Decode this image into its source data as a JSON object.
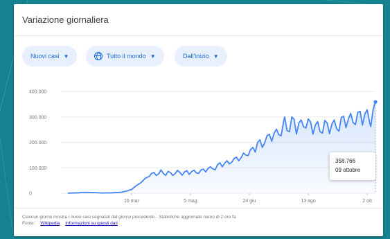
{
  "card": {
    "title": "Variazione giornaliera"
  },
  "filters": [
    {
      "label": "Nuovi casi",
      "icon": "chevron-down-icon"
    },
    {
      "label": "Tutto il mondo",
      "icon": "globe-icon"
    },
    {
      "label": "Dall'inizio",
      "icon": "chevron-down-icon"
    }
  ],
  "tooltip": {
    "value": "358.766",
    "date": "09 ottobre"
  },
  "footer": {
    "description": "Ciascun giorno mostra i nuovi casi segnalati dal giorno precedente · Statistiche aggiornate meno di 2 ore fa",
    "source_label": "Fonte:",
    "links": [
      "Wikipedia",
      "Informazioni su questi dati"
    ]
  },
  "colors": {
    "line": "#4285f4",
    "accent": "#1967d2",
    "background": "#14838f"
  },
  "chart_data": {
    "type": "line",
    "title": "",
    "xlabel": "",
    "ylabel": "",
    "ylim": [
      0,
      400000
    ],
    "yticks": [
      0,
      100000,
      200000,
      300000,
      400000
    ],
    "ytick_labels": [
      "0",
      "100.000",
      "200.000",
      "300.000",
      "400.000"
    ],
    "xtick_labels": [
      "16 mar",
      "5 mag",
      "24 giu",
      "13 ago",
      "2 ott"
    ],
    "xtick_positions": [
      "2020-03-16",
      "2020-05-05",
      "2020-06-24",
      "2020-08-13",
      "2020-10-02"
    ],
    "x_range": [
      "2020-01-22",
      "2020-10-09"
    ],
    "grid": true,
    "series": [
      {
        "points": [
          [
            "2020-01-22",
            600
          ],
          [
            "2020-01-31",
            2000
          ],
          [
            "2020-02-05",
            3800
          ],
          [
            "2020-02-12",
            3000
          ],
          [
            "2020-02-20",
            1200
          ],
          [
            "2020-02-29",
            2000
          ],
          [
            "2020-03-07",
            4000
          ],
          [
            "2020-03-12",
            9000
          ],
          [
            "2020-03-16",
            15000
          ],
          [
            "2020-03-20",
            30000
          ],
          [
            "2020-03-24",
            42000
          ],
          [
            "2020-03-28",
            60000
          ],
          [
            "2020-03-31",
            66000
          ],
          [
            "2020-04-02",
            78000
          ],
          [
            "2020-04-04",
            82000
          ],
          [
            "2020-04-06",
            70000
          ],
          [
            "2020-04-08",
            76000
          ],
          [
            "2020-04-10",
            92000
          ],
          [
            "2020-04-12",
            78000
          ],
          [
            "2020-04-14",
            70000
          ],
          [
            "2020-04-16",
            86000
          ],
          [
            "2020-04-18",
            82000
          ],
          [
            "2020-04-20",
            70000
          ],
          [
            "2020-04-22",
            77000
          ],
          [
            "2020-04-24",
            90000
          ],
          [
            "2020-04-26",
            82000
          ],
          [
            "2020-04-28",
            71000
          ],
          [
            "2020-04-30",
            84000
          ],
          [
            "2020-05-02",
            89000
          ],
          [
            "2020-05-04",
            74000
          ],
          [
            "2020-05-06",
            85000
          ],
          [
            "2020-05-08",
            91000
          ],
          [
            "2020-05-10",
            80000
          ],
          [
            "2020-05-12",
            78000
          ],
          [
            "2020-05-14",
            92000
          ],
          [
            "2020-05-16",
            95000
          ],
          [
            "2020-05-18",
            84000
          ],
          [
            "2020-05-20",
            98000
          ],
          [
            "2020-05-22",
            104000
          ],
          [
            "2020-05-24",
            96000
          ],
          [
            "2020-05-26",
            92000
          ],
          [
            "2020-05-28",
            112000
          ],
          [
            "2020-05-30",
            120000
          ],
          [
            "2020-06-01",
            104000
          ],
          [
            "2020-06-03",
            118000
          ],
          [
            "2020-06-05",
            128000
          ],
          [
            "2020-06-07",
            115000
          ],
          [
            "2020-06-09",
            122000
          ],
          [
            "2020-06-11",
            136000
          ],
          [
            "2020-06-13",
            142000
          ],
          [
            "2020-06-15",
            128000
          ],
          [
            "2020-06-17",
            140000
          ],
          [
            "2020-06-19",
            158000
          ],
          [
            "2020-06-21",
            150000
          ],
          [
            "2020-06-23",
            148000
          ],
          [
            "2020-06-25",
            172000
          ],
          [
            "2020-06-27",
            180000
          ],
          [
            "2020-06-29",
            162000
          ],
          [
            "2020-07-01",
            200000
          ],
          [
            "2020-07-03",
            210000
          ],
          [
            "2020-07-05",
            180000
          ],
          [
            "2020-07-07",
            198000
          ],
          [
            "2020-07-09",
            226000
          ],
          [
            "2020-07-11",
            232000
          ],
          [
            "2020-07-13",
            204000
          ],
          [
            "2020-07-15",
            236000
          ],
          [
            "2020-07-17",
            252000
          ],
          [
            "2020-07-19",
            230000
          ],
          [
            "2020-07-21",
            226000
          ],
          [
            "2020-07-23",
            280000
          ],
          [
            "2020-07-24",
            300000
          ],
          [
            "2020-07-26",
            246000
          ],
          [
            "2020-07-28",
            242000
          ],
          [
            "2020-07-30",
            300000
          ],
          [
            "2020-08-01",
            290000
          ],
          [
            "2020-08-03",
            232000
          ],
          [
            "2020-08-05",
            276000
          ],
          [
            "2020-08-07",
            288000
          ],
          [
            "2020-08-09",
            262000
          ],
          [
            "2020-08-11",
            256000
          ],
          [
            "2020-08-13",
            292000
          ],
          [
            "2020-08-15",
            280000
          ],
          [
            "2020-08-17",
            232000
          ],
          [
            "2020-08-19",
            268000
          ],
          [
            "2020-08-21",
            282000
          ],
          [
            "2020-08-23",
            242000
          ],
          [
            "2020-08-25",
            236000
          ],
          [
            "2020-08-27",
            286000
          ],
          [
            "2020-08-29",
            276000
          ],
          [
            "2020-08-31",
            234000
          ],
          [
            "2020-09-02",
            272000
          ],
          [
            "2020-09-04",
            288000
          ],
          [
            "2020-09-06",
            254000
          ],
          [
            "2020-09-08",
            244000
          ],
          [
            "2020-09-10",
            298000
          ],
          [
            "2020-09-12",
            302000
          ],
          [
            "2020-09-14",
            258000
          ],
          [
            "2020-09-16",
            292000
          ],
          [
            "2020-09-18",
            314000
          ],
          [
            "2020-09-20",
            278000
          ],
          [
            "2020-09-22",
            270000
          ],
          [
            "2020-09-24",
            318000
          ],
          [
            "2020-09-26",
            322000
          ],
          [
            "2020-09-28",
            268000
          ],
          [
            "2020-09-30",
            312000
          ],
          [
            "2020-10-02",
            328000
          ],
          [
            "2020-10-04",
            280000
          ],
          [
            "2020-10-05",
            262000
          ],
          [
            "2020-10-07",
            328000
          ],
          [
            "2020-10-08",
            346000
          ],
          [
            "2020-10-09",
            358766
          ]
        ]
      }
    ]
  }
}
